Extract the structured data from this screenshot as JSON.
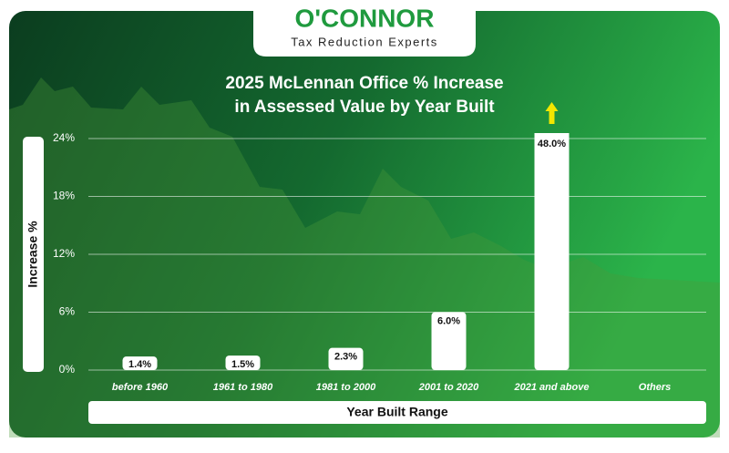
{
  "logo": {
    "name": "O'CONNOR",
    "tagline": "Tax Reduction Experts"
  },
  "chart_data": {
    "type": "bar",
    "title": [
      "2025 McLennan Office % Increase",
      "in Assessed Value by Year Built"
    ],
    "x_label": "Year Built Range",
    "y_label": "Increase %",
    "categories": [
      "before 1960",
      "1961 to 1980",
      "1981 to 2000",
      "2001 to 2020",
      "2021 and above",
      "Others"
    ],
    "values": [
      1.4,
      1.5,
      2.3,
      6.0,
      48.0,
      null
    ],
    "value_labels": [
      "1.4%",
      "1.5%",
      "2.3%",
      "6.0%",
      "48.0%",
      null
    ],
    "color": "#ffffff",
    "ylim": [
      0,
      24
    ],
    "yticks": [
      {
        "value": 0,
        "label": "0%"
      },
      {
        "value": 6,
        "label": "6%"
      },
      {
        "value": 12,
        "label": "12%"
      },
      {
        "value": 18,
        "label": "18%"
      },
      {
        "value": 24,
        "label": "24%"
      }
    ],
    "grid": true
  }
}
